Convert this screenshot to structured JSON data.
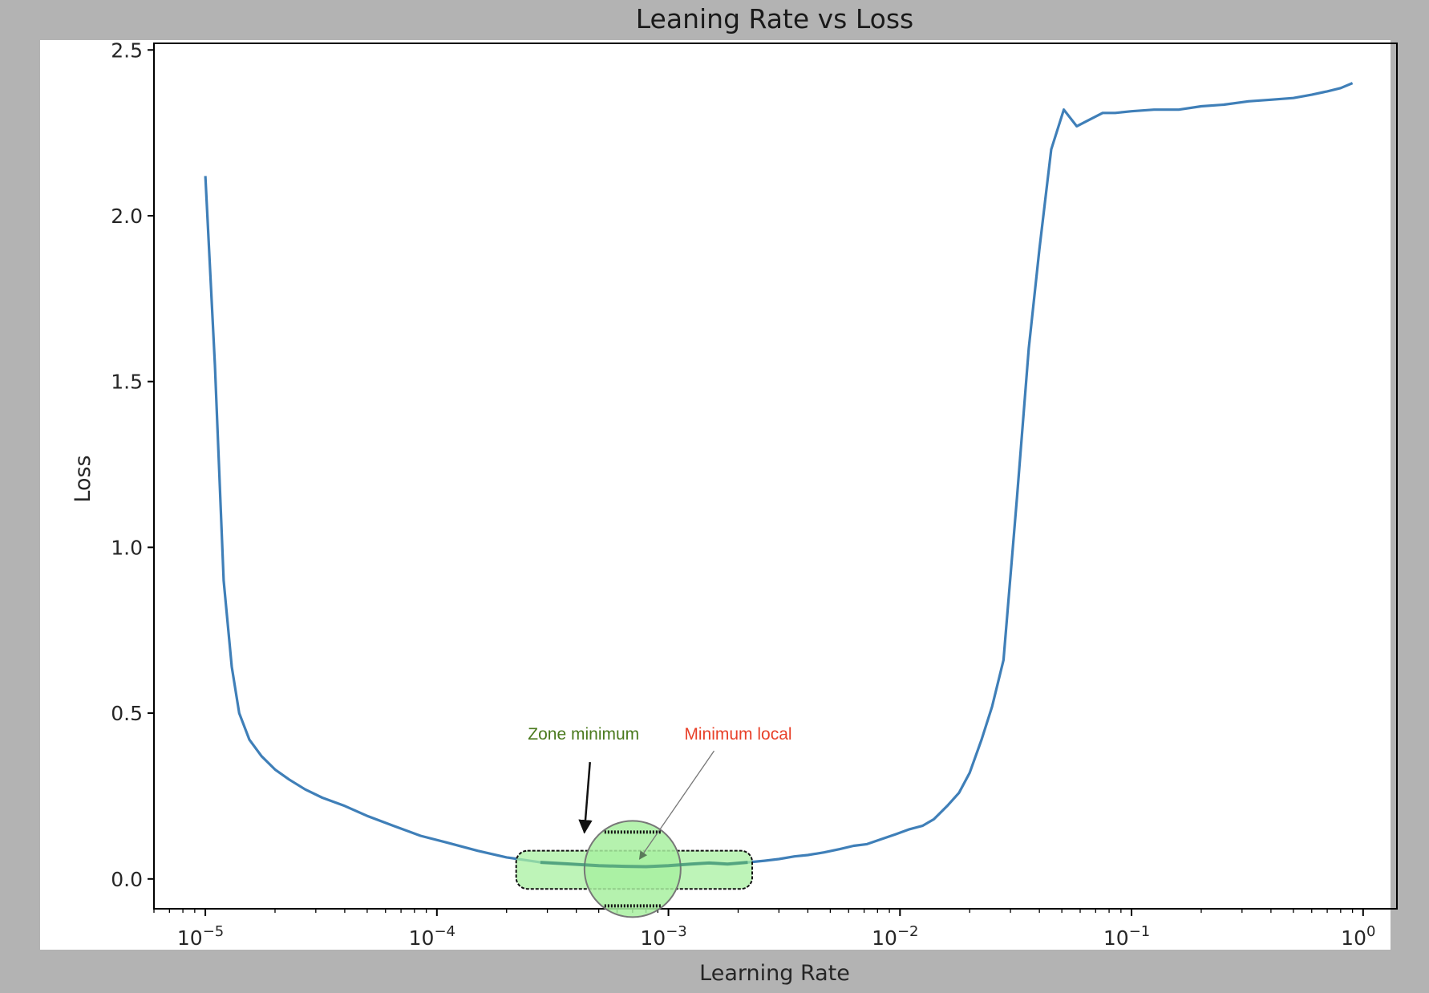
{
  "chart_data": {
    "type": "line",
    "title": "Leaning Rate vs Loss",
    "xlabel": "Learning Rate",
    "ylabel": "Loss",
    "xscale": "log",
    "xlim": [
      6e-06,
      1.4
    ],
    "ylim": [
      -0.09,
      2.52
    ],
    "grid": false,
    "line_color": "#3f7fb8",
    "xticks": [
      {
        "value": 1e-05,
        "base": "10",
        "exp": "−5"
      },
      {
        "value": 0.0001,
        "base": "10",
        "exp": "−4"
      },
      {
        "value": 0.001,
        "base": "10",
        "exp": "−3"
      },
      {
        "value": 0.01,
        "base": "10",
        "exp": "−2"
      },
      {
        "value": 0.1,
        "base": "10",
        "exp": "−1"
      },
      {
        "value": 1,
        "base": "10",
        "exp": "0"
      }
    ],
    "yticks": [
      {
        "value": 0.0,
        "label": "0.0"
      },
      {
        "value": 0.5,
        "label": "0.5"
      },
      {
        "value": 1.0,
        "label": "1.0"
      },
      {
        "value": 1.5,
        "label": "1.5"
      },
      {
        "value": 2.0,
        "label": "2.0"
      },
      {
        "value": 2.5,
        "label": "2.5"
      }
    ],
    "series": [
      {
        "x": [
          1e-05,
          1.1e-05,
          1.2e-05,
          1.3e-05,
          1.4e-05,
          1.55e-05,
          1.75e-05,
          2e-05,
          2.3e-05,
          2.7e-05,
          3.2e-05,
          4e-05,
          5e-05,
          6.5e-05,
          8.5e-05,
          0.00011,
          0.00015,
          0.0002,
          0.00028,
          0.00038,
          0.0005,
          0.00065,
          0.0008,
          0.001,
          0.00125,
          0.0015,
          0.0018,
          0.0022,
          0.0026,
          0.003,
          0.0035,
          0.004,
          0.0047,
          0.0055,
          0.0063,
          0.0072,
          0.0083,
          0.0096,
          0.011,
          0.0125,
          0.014,
          0.016,
          0.018,
          0.02,
          0.0225,
          0.025,
          0.028,
          0.032,
          0.036,
          0.04,
          0.045,
          0.051,
          0.058,
          0.066,
          0.075,
          0.085,
          0.1,
          0.125,
          0.16,
          0.2,
          0.25,
          0.32,
          0.4,
          0.5,
          0.6,
          0.7,
          0.8,
          0.9
        ],
        "y": [
          2.12,
          1.55,
          0.9,
          0.64,
          0.5,
          0.42,
          0.37,
          0.33,
          0.3,
          0.27,
          0.245,
          0.22,
          0.19,
          0.16,
          0.13,
          0.11,
          0.085,
          0.065,
          0.05,
          0.045,
          0.04,
          0.038,
          0.037,
          0.04,
          0.045,
          0.048,
          0.045,
          0.05,
          0.055,
          0.06,
          0.068,
          0.072,
          0.08,
          0.09,
          0.1,
          0.105,
          0.12,
          0.135,
          0.15,
          0.16,
          0.18,
          0.22,
          0.26,
          0.32,
          0.42,
          0.52,
          0.66,
          1.15,
          1.6,
          1.9,
          2.2,
          2.32,
          2.27,
          2.29,
          2.31,
          2.31,
          2.315,
          2.32,
          2.32,
          2.33,
          2.335,
          2.345,
          2.35,
          2.355,
          2.365,
          2.375,
          2.385,
          2.4
        ]
      }
    ],
    "annotations": [
      {
        "text": "Zone minimum",
        "color": "#4a7a1e",
        "at_x": 0.00043,
        "at_y": 0.42,
        "arrow_to_x": 0.00042,
        "arrow_to_y": 0.14
      },
      {
        "text": "Minimum local",
        "color": "#e8412a",
        "at_x": 0.002,
        "at_y": 0.42,
        "arrow_to_x": 0.00075,
        "arrow_to_y": 0.06
      }
    ],
    "highlights": [
      {
        "shape": "rounded-band",
        "color": "#a8f0a0",
        "x_from": 0.00022,
        "x_to": 0.0023,
        "y_from": -0.03,
        "y_to": 0.085
      },
      {
        "shape": "circle",
        "color": "#a8f0a0",
        "center_x": 0.0007,
        "center_y": 0.03
      }
    ]
  }
}
